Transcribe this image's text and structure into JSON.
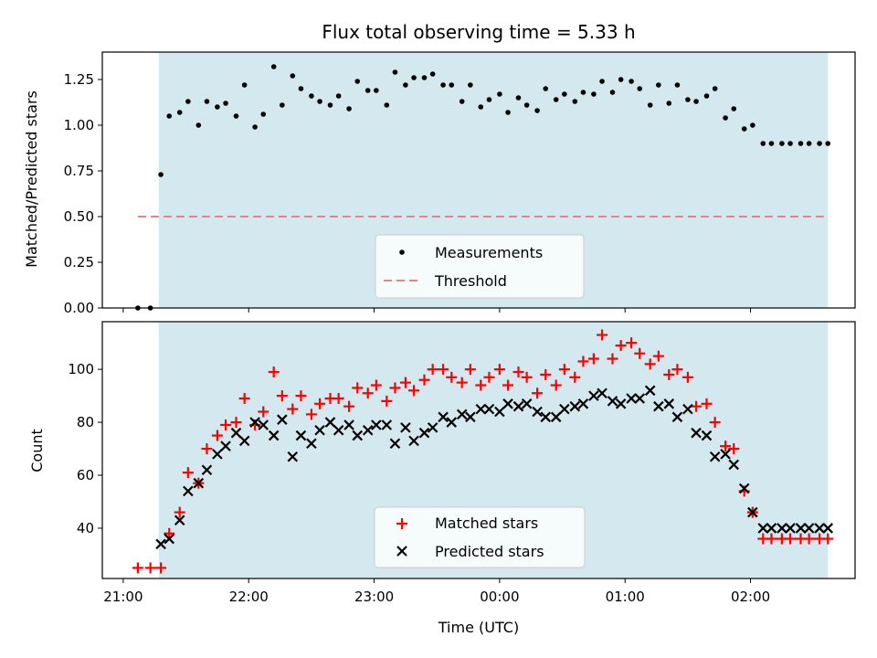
{
  "chart_data": [
    {
      "type": "scatter",
      "title": "Flux total observing time = 5.33 h",
      "xlabel": "",
      "ylabel": "Matched/Predicted stars",
      "ylim": [
        0,
        1.4
      ],
      "yticks": [
        "0.00",
        "0.25",
        "0.50",
        "0.75",
        "1.00",
        "1.25"
      ],
      "xlim": [
        "21:00",
        "02:50"
      ],
      "observing_window": [
        "21:17",
        "02:37"
      ],
      "shade_color": "#d3e9ef",
      "legend_position": "lower-center",
      "threshold": {
        "name": "Threshold",
        "value": 0.5,
        "x_range": [
          "21:07",
          "02:37"
        ],
        "color": "#f08080",
        "style": "dashed"
      },
      "series": [
        {
          "name": "Measurements",
          "color": "#000000",
          "marker": "dot",
          "x": [
            "21:07",
            "21:13",
            "21:18",
            "21:22",
            "21:27",
            "21:31",
            "21:36",
            "21:40",
            "21:45",
            "21:49",
            "21:54",
            "21:58",
            "22:03",
            "22:07",
            "22:12",
            "22:16",
            "22:21",
            "22:25",
            "22:30",
            "22:34",
            "22:39",
            "22:43",
            "22:48",
            "22:52",
            "22:57",
            "23:01",
            "23:06",
            "23:10",
            "23:15",
            "23:19",
            "23:24",
            "23:28",
            "23:33",
            "23:37",
            "23:42",
            "23:46",
            "23:51",
            "23:55",
            "00:00",
            "00:04",
            "00:09",
            "00:13",
            "00:18",
            "00:22",
            "00:27",
            "00:31",
            "00:36",
            "00:40",
            "00:45",
            "00:49",
            "00:54",
            "00:58",
            "01:03",
            "01:07",
            "01:12",
            "01:16",
            "01:21",
            "01:25",
            "01:30",
            "01:34",
            "01:39",
            "01:43",
            "01:48",
            "01:52",
            "01:57",
            "02:01",
            "02:06",
            "02:10",
            "02:15",
            "02:19",
            "02:24",
            "02:28",
            "02:33",
            "02:37"
          ],
          "values": [
            0.0,
            0.0,
            0.73,
            1.05,
            1.07,
            1.13,
            1.0,
            1.13,
            1.1,
            1.12,
            1.05,
            1.22,
            0.99,
            1.06,
            1.32,
            1.11,
            1.27,
            1.2,
            1.16,
            1.13,
            1.11,
            1.16,
            1.09,
            1.24,
            1.19,
            1.19,
            1.11,
            1.29,
            1.22,
            1.26,
            1.26,
            1.28,
            1.22,
            1.22,
            1.13,
            1.22,
            1.1,
            1.14,
            1.17,
            1.07,
            1.15,
            1.11,
            1.08,
            1.2,
            1.14,
            1.17,
            1.13,
            1.18,
            1.17,
            1.24,
            1.18,
            1.25,
            1.24,
            1.2,
            1.11,
            1.22,
            1.12,
            1.22,
            1.14,
            1.13,
            1.16,
            1.2,
            1.04,
            1.09,
            0.98,
            1.0,
            0.9,
            0.9,
            0.9,
            0.9,
            0.9,
            0.9,
            0.9,
            0.9
          ]
        }
      ]
    },
    {
      "type": "scatter",
      "title": "",
      "xlabel": "Time (UTC)",
      "ylabel": "Count",
      "ylim": [
        21,
        118
      ],
      "yticks": [
        "40",
        "60",
        "80",
        "100"
      ],
      "xlim": [
        "21:00",
        "02:50"
      ],
      "xticks": [
        "21:00",
        "22:00",
        "23:00",
        "00:00",
        "01:00",
        "02:00"
      ],
      "observing_window": [
        "21:17",
        "02:37"
      ],
      "shade_color": "#d3e9ef",
      "legend_position": "lower-center",
      "series": [
        {
          "name": "Matched stars",
          "color": "#ff0000",
          "marker": "plus",
          "x": [
            "21:07",
            "21:13",
            "21:18",
            "21:22",
            "21:27",
            "21:31",
            "21:36",
            "21:40",
            "21:45",
            "21:49",
            "21:54",
            "21:58",
            "22:03",
            "22:07",
            "22:12",
            "22:16",
            "22:21",
            "22:25",
            "22:30",
            "22:34",
            "22:39",
            "22:43",
            "22:48",
            "22:52",
            "22:57",
            "23:01",
            "23:06",
            "23:10",
            "23:15",
            "23:19",
            "23:24",
            "23:28",
            "23:33",
            "23:37",
            "23:42",
            "23:46",
            "23:51",
            "23:55",
            "00:00",
            "00:04",
            "00:09",
            "00:13",
            "00:18",
            "00:22",
            "00:27",
            "00:31",
            "00:36",
            "00:40",
            "00:45",
            "00:49",
            "00:54",
            "00:58",
            "01:03",
            "01:07",
            "01:12",
            "01:16",
            "01:21",
            "01:25",
            "01:30",
            "01:34",
            "01:39",
            "01:43",
            "01:48",
            "01:52",
            "01:57",
            "02:01",
            "02:06",
            "02:10",
            "02:15",
            "02:19",
            "02:24",
            "02:28",
            "02:33",
            "02:37"
          ],
          "values": [
            25,
            25,
            25,
            38,
            46,
            61,
            57,
            70,
            75,
            79,
            80,
            89,
            79,
            84,
            99,
            90,
            85,
            90,
            83,
            87,
            89,
            89,
            86,
            93,
            91,
            94,
            88,
            93,
            95,
            92,
            96,
            100,
            100,
            97,
            95,
            100,
            94,
            97,
            100,
            94,
            99,
            97,
            91,
            98,
            94,
            100,
            97,
            103,
            104,
            113,
            104,
            109,
            110,
            106,
            102,
            105,
            98,
            100,
            97,
            86,
            87,
            80,
            71,
            70,
            54,
            46,
            36,
            36,
            36,
            36,
            36,
            36,
            36,
            36
          ]
        },
        {
          "name": "Predicted stars",
          "color": "#000000",
          "marker": "x",
          "x": [
            "21:18",
            "21:22",
            "21:27",
            "21:31",
            "21:36",
            "21:40",
            "21:45",
            "21:49",
            "21:54",
            "21:58",
            "22:03",
            "22:07",
            "22:12",
            "22:16",
            "22:21",
            "22:25",
            "22:30",
            "22:34",
            "22:39",
            "22:43",
            "22:48",
            "22:52",
            "22:57",
            "23:01",
            "23:06",
            "23:10",
            "23:15",
            "23:19",
            "23:24",
            "23:28",
            "23:33",
            "23:37",
            "23:42",
            "23:46",
            "23:51",
            "23:55",
            "00:00",
            "00:04",
            "00:09",
            "00:13",
            "00:18",
            "00:22",
            "00:27",
            "00:31",
            "00:36",
            "00:40",
            "00:45",
            "00:49",
            "00:54",
            "00:58",
            "01:03",
            "01:07",
            "01:12",
            "01:16",
            "01:21",
            "01:25",
            "01:30",
            "01:34",
            "01:39",
            "01:43",
            "01:48",
            "01:52",
            "01:57",
            "02:01",
            "02:06",
            "02:10",
            "02:15",
            "02:19",
            "02:24",
            "02:28",
            "02:33",
            "02:37"
          ],
          "values": [
            34,
            36,
            43,
            54,
            57,
            62,
            68,
            71,
            76,
            73,
            80,
            79,
            75,
            81,
            67,
            75,
            72,
            77,
            80,
            77,
            79,
            75,
            77,
            79,
            79,
            72,
            78,
            73,
            76,
            78,
            82,
            80,
            83,
            82,
            85,
            85,
            84,
            87,
            86,
            87,
            84,
            82,
            82,
            85,
            86,
            87,
            90,
            91,
            88,
            87,
            89,
            89,
            92,
            86,
            87,
            82,
            85,
            76,
            75,
            67,
            68,
            64,
            55,
            46,
            40,
            40,
            40,
            40,
            40,
            40,
            40,
            40
          ]
        }
      ]
    }
  ]
}
